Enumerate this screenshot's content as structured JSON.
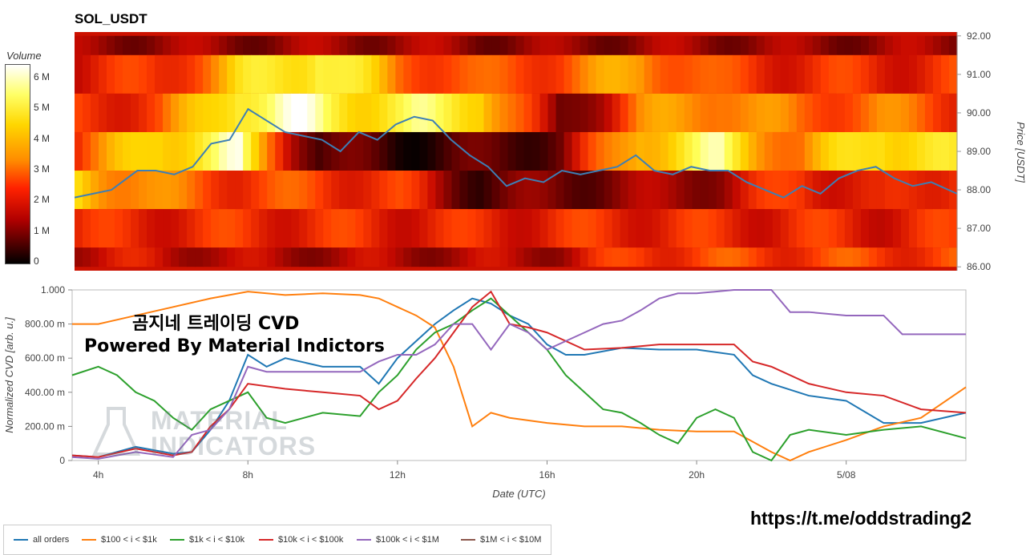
{
  "page": {
    "title": "SOL_USDT",
    "overlay_line1": "곰지네 트레이딩 CVD",
    "overlay_line2": "Powered By Material Indictors",
    "watermark_line1": "MATERIAL",
    "watermark_line2": "INDICATORS",
    "url": "https://t.me/oddstrading2",
    "colors": {
      "background": "#ffffff",
      "price_line": "#3d7fb5"
    }
  },
  "colorbar": {
    "label": "Volume",
    "ticks": [
      "6 M",
      "5 M",
      "4 M",
      "3 M",
      "2 M",
      "1 M",
      "0"
    ],
    "tick_values": [
      6,
      5,
      4,
      3,
      2,
      1,
      0
    ]
  },
  "chart_data": [
    {
      "type": "heatmap",
      "title": "SOL_USDT",
      "ylabel": "Price [USDT]",
      "y_ticks": [
        "92.00",
        "91.00",
        "90.00",
        "89.00",
        "88.00",
        "87.00",
        "86.00"
      ],
      "y_tick_values": [
        92,
        91,
        90,
        89,
        88,
        87,
        86
      ],
      "ylim": [
        85.9,
        92.1
      ],
      "xlim": [
        3.3,
        27.2
      ],
      "price_bands": [
        {
          "low": 91.5,
          "high": 92.0,
          "intensity": [
            0.25,
            0.27,
            0.25,
            0.26,
            0.28,
            0.25,
            0.24,
            0.26,
            0.27,
            0.25,
            0.26,
            0.28
          ]
        },
        {
          "low": 90.5,
          "high": 91.5,
          "intensity": [
            0.42,
            0.45,
            0.75,
            0.95,
            0.6,
            0.5,
            0.55,
            0.7,
            0.48,
            0.45,
            0.44,
            0.46
          ]
        },
        {
          "low": 89.5,
          "high": 90.5,
          "intensity": [
            0.45,
            0.5,
            0.95,
            0.9,
            0.85,
            0.88,
            0.15,
            0.6,
            0.7,
            0.55,
            0.6,
            0.5
          ]
        },
        {
          "low": 88.5,
          "high": 89.5,
          "intensity": [
            0.5,
            0.85,
            0.9,
            0.15,
            0.1,
            0.12,
            0.2,
            0.8,
            0.88,
            0.6,
            0.9,
            0.75
          ]
        },
        {
          "low": 87.5,
          "high": 88.5,
          "intensity": [
            0.8,
            0.6,
            0.5,
            0.5,
            0.45,
            0.15,
            0.2,
            0.25,
            0.3,
            0.5,
            0.35,
            0.55
          ]
        },
        {
          "low": 86.5,
          "high": 87.5,
          "intensity": [
            0.42,
            0.44,
            0.45,
            0.45,
            0.43,
            0.42,
            0.44,
            0.45,
            0.43,
            0.44,
            0.42,
            0.44
          ]
        },
        {
          "low": 86.0,
          "high": 86.5,
          "intensity": [
            0.35,
            0.36,
            0.3,
            0.3,
            0.3,
            0.3,
            0.32,
            0.5,
            0.5,
            0.5,
            0.5,
            0.5
          ]
        }
      ],
      "price_line": {
        "x": [
          3.3,
          3.8,
          4.3,
          5.0,
          5.5,
          6.0,
          6.5,
          7.0,
          7.5,
          8.0,
          8.5,
          9.0,
          9.5,
          10.0,
          10.5,
          11.0,
          11.5,
          12.0,
          12.5,
          13.0,
          13.5,
          14.0,
          14.5,
          15.0,
          15.5,
          16.0,
          16.5,
          17.0,
          17.5,
          18.0,
          18.5,
          19.0,
          19.5,
          20.0,
          20.5,
          21.0,
          21.5,
          22.0,
          22.5,
          23.0,
          23.5,
          24.0,
          24.5,
          25.0,
          25.5,
          26.0,
          26.5,
          27.2
        ],
        "y": [
          87.8,
          87.9,
          88.0,
          88.5,
          88.5,
          88.4,
          88.6,
          89.2,
          89.3,
          90.1,
          89.8,
          89.5,
          89.4,
          89.3,
          89.0,
          89.5,
          89.3,
          89.7,
          89.9,
          89.8,
          89.3,
          88.9,
          88.6,
          88.1,
          88.3,
          88.2,
          88.5,
          88.4,
          88.5,
          88.6,
          88.9,
          88.5,
          88.4,
          88.6,
          88.5,
          88.5,
          88.2,
          88.0,
          87.8,
          88.1,
          87.9,
          88.3,
          88.5,
          88.6,
          88.3,
          88.1,
          88.2,
          87.9
        ]
      }
    },
    {
      "type": "line",
      "xlabel": "Date (UTC)",
      "ylabel": "Normalized CVD [arb. u.]",
      "y_ticks": [
        "1.000",
        "800.00 m",
        "600.00 m",
        "400.00 m",
        "200.00 m",
        "0"
      ],
      "y_tick_values": [
        1.0,
        0.8,
        0.6,
        0.4,
        0.2,
        0.0
      ],
      "x_ticks": [
        "4h",
        "8h",
        "12h",
        "16h",
        "20h",
        "5/08"
      ],
      "x_tick_values": [
        4,
        8,
        12,
        16,
        20,
        24
      ],
      "xlim": [
        3.3,
        27.2
      ],
      "ylim": [
        0,
        1.0
      ],
      "series": [
        {
          "name": "all orders",
          "color": "#1f77b4",
          "x": [
            3.3,
            4.0,
            5.0,
            6.0,
            6.5,
            7.0,
            7.5,
            8.0,
            8.5,
            9.0,
            10.0,
            11.0,
            11.5,
            12.0,
            12.5,
            13.0,
            13.5,
            14.0,
            14.5,
            15.0,
            15.5,
            16.0,
            16.5,
            17.0,
            18.0,
            19.0,
            20.0,
            21.0,
            21.5,
            22.0,
            23.0,
            24.0,
            25.0,
            26.0,
            27.2
          ],
          "y": [
            0.03,
            0.02,
            0.08,
            0.04,
            0.05,
            0.18,
            0.35,
            0.62,
            0.55,
            0.6,
            0.55,
            0.55,
            0.45,
            0.6,
            0.7,
            0.8,
            0.88,
            0.95,
            0.92,
            0.85,
            0.8,
            0.68,
            0.62,
            0.62,
            0.66,
            0.65,
            0.65,
            0.62,
            0.5,
            0.45,
            0.38,
            0.35,
            0.22,
            0.22,
            0.28
          ]
        },
        {
          "name": "$100 < i < $1k",
          "color": "#ff7f0e",
          "x": [
            3.3,
            4.0,
            5.0,
            6.0,
            7.0,
            8.0,
            9.0,
            10.0,
            11.0,
            11.5,
            12.0,
            12.5,
            13.0,
            13.5,
            14.0,
            14.5,
            15.0,
            16.0,
            17.0,
            18.0,
            19.0,
            20.0,
            21.0,
            22.0,
            22.5,
            23.0,
            24.0,
            25.0,
            26.0,
            27.2
          ],
          "y": [
            0.8,
            0.8,
            0.85,
            0.9,
            0.95,
            0.99,
            0.97,
            0.98,
            0.97,
            0.95,
            0.9,
            0.85,
            0.78,
            0.55,
            0.2,
            0.28,
            0.25,
            0.22,
            0.2,
            0.2,
            0.18,
            0.17,
            0.17,
            0.05,
            0.0,
            0.05,
            0.12,
            0.2,
            0.25,
            0.43
          ]
        },
        {
          "name": "$1k < i < $10k",
          "color": "#2ca02c",
          "x": [
            3.3,
            4.0,
            4.5,
            5.0,
            5.5,
            6.0,
            6.5,
            7.0,
            7.5,
            8.0,
            8.5,
            9.0,
            10.0,
            11.0,
            11.5,
            12.0,
            12.5,
            13.0,
            13.5,
            14.0,
            14.5,
            15.0,
            15.5,
            16.0,
            16.5,
            17.0,
            17.5,
            18.0,
            18.5,
            19.0,
            19.5,
            20.0,
            20.5,
            21.0,
            21.5,
            22.0,
            22.5,
            23.0,
            24.0,
            25.0,
            26.0,
            27.2
          ],
          "y": [
            0.5,
            0.55,
            0.5,
            0.4,
            0.35,
            0.25,
            0.18,
            0.3,
            0.35,
            0.4,
            0.25,
            0.22,
            0.28,
            0.26,
            0.4,
            0.5,
            0.65,
            0.75,
            0.8,
            0.88,
            0.95,
            0.85,
            0.75,
            0.65,
            0.5,
            0.4,
            0.3,
            0.28,
            0.22,
            0.15,
            0.1,
            0.25,
            0.3,
            0.25,
            0.05,
            0.0,
            0.15,
            0.18,
            0.15,
            0.18,
            0.2,
            0.13
          ]
        },
        {
          "name": "$10k < i < $100k",
          "color": "#d62728",
          "x": [
            3.3,
            4.0,
            5.0,
            6.0,
            6.5,
            7.0,
            7.5,
            8.0,
            9.0,
            10.0,
            11.0,
            11.5,
            12.0,
            12.5,
            13.0,
            13.5,
            14.0,
            14.5,
            15.0,
            15.5,
            16.0,
            17.0,
            18.0,
            19.0,
            20.0,
            21.0,
            21.5,
            22.0,
            23.0,
            24.0,
            25.0,
            26.0,
            27.2
          ],
          "y": [
            0.03,
            0.02,
            0.07,
            0.03,
            0.05,
            0.2,
            0.3,
            0.45,
            0.42,
            0.4,
            0.38,
            0.3,
            0.35,
            0.48,
            0.6,
            0.75,
            0.9,
            0.99,
            0.8,
            0.78,
            0.75,
            0.65,
            0.66,
            0.68,
            0.68,
            0.68,
            0.58,
            0.55,
            0.45,
            0.4,
            0.38,
            0.3,
            0.28
          ]
        },
        {
          "name": "$100k < i < $1M",
          "color": "#9467bd",
          "x": [
            3.3,
            4.0,
            5.0,
            6.0,
            6.5,
            7.0,
            7.5,
            8.0,
            8.5,
            9.0,
            10.0,
            11.0,
            11.5,
            12.0,
            12.5,
            13.0,
            13.5,
            14.0,
            14.5,
            15.0,
            15.5,
            16.0,
            16.5,
            17.0,
            17.5,
            18.0,
            18.5,
            19.0,
            19.5,
            20.0,
            21.0,
            22.0,
            22.5,
            23.0,
            24.0,
            25.0,
            25.5,
            26.0,
            27.2
          ],
          "y": [
            0.02,
            0.01,
            0.05,
            0.02,
            0.15,
            0.18,
            0.3,
            0.55,
            0.52,
            0.52,
            0.52,
            0.52,
            0.58,
            0.62,
            0.62,
            0.68,
            0.8,
            0.8,
            0.65,
            0.8,
            0.75,
            0.65,
            0.7,
            0.75,
            0.8,
            0.82,
            0.88,
            0.95,
            0.98,
            0.98,
            1.0,
            1.0,
            0.87,
            0.87,
            0.85,
            0.85,
            0.74,
            0.74,
            0.74
          ]
        },
        {
          "name": "$1M < i < $10M",
          "color": "#8c564b",
          "x": [],
          "y": []
        }
      ]
    }
  ]
}
